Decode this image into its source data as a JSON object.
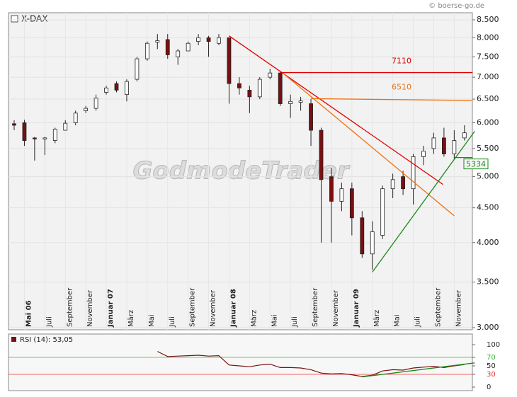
{
  "source": "© boerse-go.de",
  "watermark": "GodmodeTrader",
  "chart_data": [
    {
      "type": "candlestick",
      "title": "X-DAX",
      "log_scale": true,
      "grid": true,
      "ylim": [
        3000,
        8500
      ],
      "yticks": [
        {
          "value": 3000,
          "label": "3.000"
        },
        {
          "value": 3500,
          "label": "3.500"
        },
        {
          "value": 4000,
          "label": "4.000"
        },
        {
          "value": 4500,
          "label": "4.500"
        },
        {
          "value": 5000,
          "label": "5.000"
        },
        {
          "value": 5500,
          "label": "5.500"
        },
        {
          "value": 6000,
          "label": "6.000"
        },
        {
          "value": 6500,
          "label": "6.500"
        },
        {
          "value": 7000,
          "label": "7.000"
        },
        {
          "value": 7500,
          "label": "7.500"
        },
        {
          "value": 8000,
          "label": "8.000"
        },
        {
          "value": 8500,
          "label": "8.500"
        }
      ],
      "categories": [
        null,
        "Mai 06",
        null,
        "Juli",
        null,
        "September",
        null,
        "November",
        null,
        "Januar 07",
        null,
        "März",
        null,
        "Mai",
        null,
        "Juli",
        null,
        "September",
        null,
        "November",
        null,
        "Januar 08",
        null,
        "März",
        null,
        "Mai",
        null,
        "Juli",
        null,
        "September",
        null,
        "November",
        null,
        "Januar 09",
        null,
        "März",
        null,
        "Mai",
        null,
        "Juli",
        null,
        "September",
        null,
        "November",
        null
      ],
      "up_color": "#ffffff",
      "down_color": "#7a0f0f",
      "open": [
        5980,
        6000,
        5700,
        5680,
        5650,
        5850,
        6000,
        6250,
        6300,
        6650,
        6850,
        6600,
        6950,
        7450,
        7880,
        7950,
        7500,
        7650,
        7900,
        8000,
        7850,
        8000,
        6850,
        6700,
        6550,
        7000,
        7100,
        6400,
        6430,
        6400,
        5850,
        5000,
        4600,
        4800,
        4350,
        3850,
        4100,
        4800,
        5000,
        4800,
        5350,
        5500,
        5700,
        5400,
        5700
      ],
      "high": [
        6050,
        6060,
        5720,
        5720,
        5900,
        6050,
        6250,
        6350,
        6600,
        6800,
        6900,
        6950,
        7500,
        7900,
        8100,
        8100,
        7700,
        7900,
        8100,
        8050,
        8100,
        8000,
        7000,
        6800,
        7000,
        7200,
        7150,
        6600,
        6550,
        6500,
        5900,
        5150,
        4900,
        4900,
        4450,
        4300,
        4850,
        5050,
        5100,
        5400,
        5550,
        5800,
        5900,
        5850,
        5950
      ],
      "low": [
        5850,
        5550,
        5280,
        5380,
        5600,
        5850,
        5950,
        6200,
        6250,
        6600,
        6650,
        6450,
        6900,
        7400,
        7700,
        7450,
        7300,
        7650,
        7800,
        7500,
        7800,
        6400,
        6600,
        6200,
        6500,
        6950,
        6350,
        6100,
        6250,
        5550,
        4000,
        4000,
        4450,
        4100,
        3800,
        3650,
        4050,
        4650,
        4700,
        4550,
        5200,
        5400,
        5350,
        5300,
        5650
      ],
      "close": [
        5950,
        5650,
        5680,
        5700,
        5870,
        5990,
        6200,
        6300,
        6520,
        6750,
        6700,
        6900,
        7450,
        7850,
        7920,
        7550,
        7650,
        7850,
        8000,
        7900,
        8000,
        6850,
        6750,
        6550,
        6950,
        7100,
        6400,
        6450,
        6460,
        5850,
        4950,
        4600,
        4800,
        4350,
        3850,
        4150,
        4800,
        4950,
        4800,
        5350,
        5450,
        5700,
        5400,
        5650,
        5800
      ],
      "lines": [
        {
          "color": "#e00000",
          "points": [
            [
              21,
              8050
            ],
            [
              41.9,
              4870
            ]
          ]
        },
        {
          "color": "#f07010",
          "points": [
            [
              26,
              7150
            ],
            [
              43,
              4380
            ]
          ]
        },
        {
          "color": "#1a8a1a",
          "points": [
            [
              35,
              3620
            ],
            [
              45,
              5830
            ]
          ]
        },
        {
          "color": "#e00000",
          "label": "7110",
          "points": [
            [
              26,
              7110
            ],
            [
              44.8,
              7110
            ]
          ]
        },
        {
          "color": "#f07010",
          "label": "6510",
          "points": [
            [
              29,
              6510
            ],
            [
              44.8,
              6470
            ]
          ]
        },
        {
          "color": "#1a8a1a",
          "label": "5334",
          "points": [
            [
              43,
              5334
            ],
            [
              44.8,
              5334
            ]
          ]
        }
      ]
    },
    {
      "type": "line",
      "title": "RSI (14): 53,05",
      "color": "#7a1010",
      "ylim": [
        0,
        100
      ],
      "yticks": [
        0,
        30,
        50,
        70,
        100
      ],
      "levels": [
        {
          "value": 70,
          "color": "#33bb33"
        },
        {
          "value": 30,
          "color": "#ee3333"
        }
      ],
      "values": [
        null,
        null,
        null,
        null,
        null,
        null,
        null,
        null,
        null,
        null,
        null,
        null,
        null,
        null,
        84,
        72,
        73,
        74,
        75,
        73,
        74,
        52,
        50,
        48,
        52,
        54,
        46,
        46,
        45,
        41,
        33,
        31,
        32,
        29,
        25,
        28,
        38,
        41,
        40,
        45,
        47,
        49,
        46,
        50,
        53
      ],
      "lines": [
        {
          "color": "#1a8a1a",
          "points": [
            [
              34,
              24
            ],
            [
              45,
              57
            ]
          ]
        }
      ]
    }
  ]
}
